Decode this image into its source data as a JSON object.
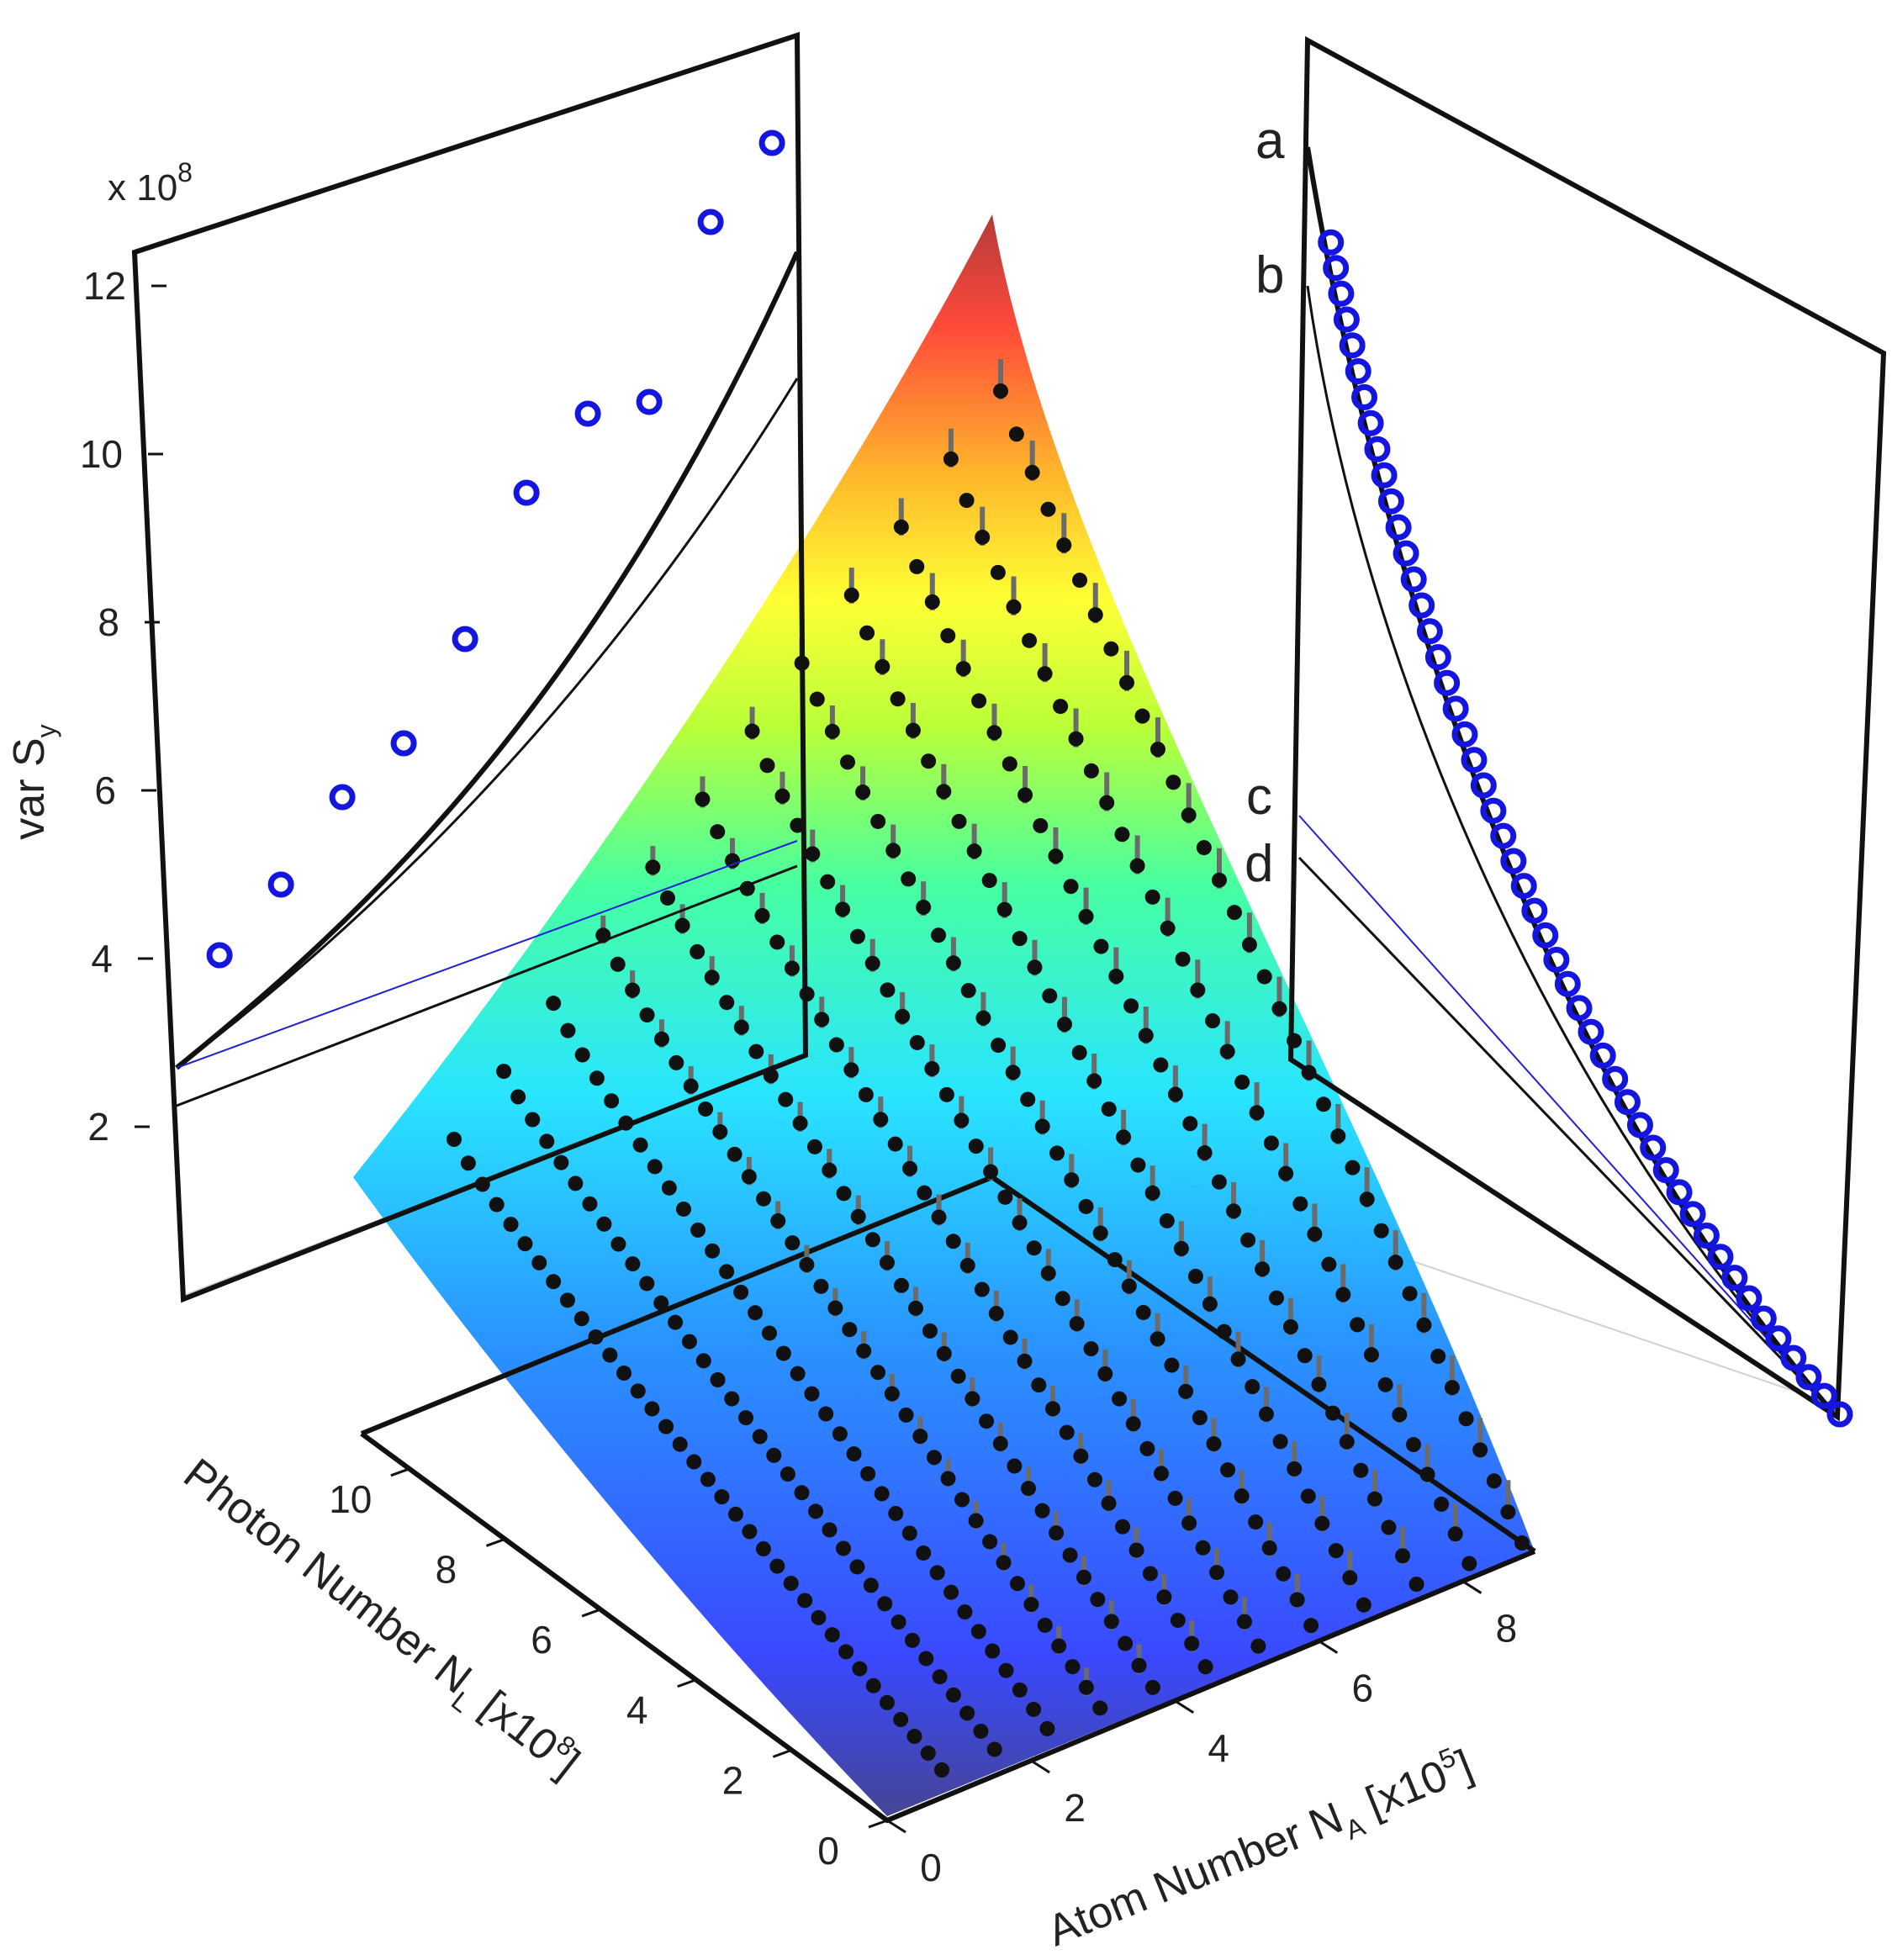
{
  "chart_data": {
    "type": "scatter",
    "surface_colormap": [
      "#3b3b8f",
      "#2f3fff",
      "#1e90ff",
      "#1ee3ff",
      "#3cff9e",
      "#b6ff2e",
      "#ffff2a",
      "#ffb020",
      "#ff4030",
      "#b03030"
    ],
    "axes": {
      "photon": {
        "label_main": "Photon Number N",
        "label_sub": "L",
        "label_unit_pre": " [x10",
        "label_unit_exp": "8",
        "label_unit_post": "]",
        "range": [
          0,
          11
        ],
        "ticks": [
          "0",
          "2",
          "4",
          "6",
          "8",
          "10"
        ]
      },
      "atom": {
        "label_main": "Atom Number N",
        "label_sub": "A",
        "label_unit_pre": " [x10",
        "label_unit_exp": "5",
        "label_unit_post": "]",
        "range": [
          0,
          9
        ],
        "ticks": [
          "0",
          "2",
          "4",
          "6",
          "8"
        ]
      },
      "var": {
        "label_main": "var S",
        "label_sub": "y",
        "multiplier_pre": "x 10",
        "multiplier_exp": "8",
        "range": [
          0,
          13
        ],
        "ticks": [
          "2",
          "4",
          "6",
          "8",
          "10",
          "12"
        ]
      }
    },
    "left_panel": {
      "x_label": "Photon Number",
      "points": [
        {
          "x": 1,
          "y": 4.0
        },
        {
          "x": 2,
          "y": 4.8
        },
        {
          "x": 3,
          "y": 5.8
        },
        {
          "x": 4,
          "y": 6.4
        },
        {
          "x": 5,
          "y": 7.6
        },
        {
          "x": 6,
          "y": 9.3
        },
        {
          "x": 7,
          "y": 10.2
        },
        {
          "x": 8,
          "y": 10.3
        },
        {
          "x": 9,
          "y": 12.4
        },
        {
          "x": 10,
          "y": 13.3
        }
      ]
    },
    "right_panel": {
      "curve_labels": [
        "a",
        "b",
        "c",
        "d"
      ],
      "points_count": 50
    },
    "surface_rows": 12,
    "surface_points_per_row": 36
  }
}
